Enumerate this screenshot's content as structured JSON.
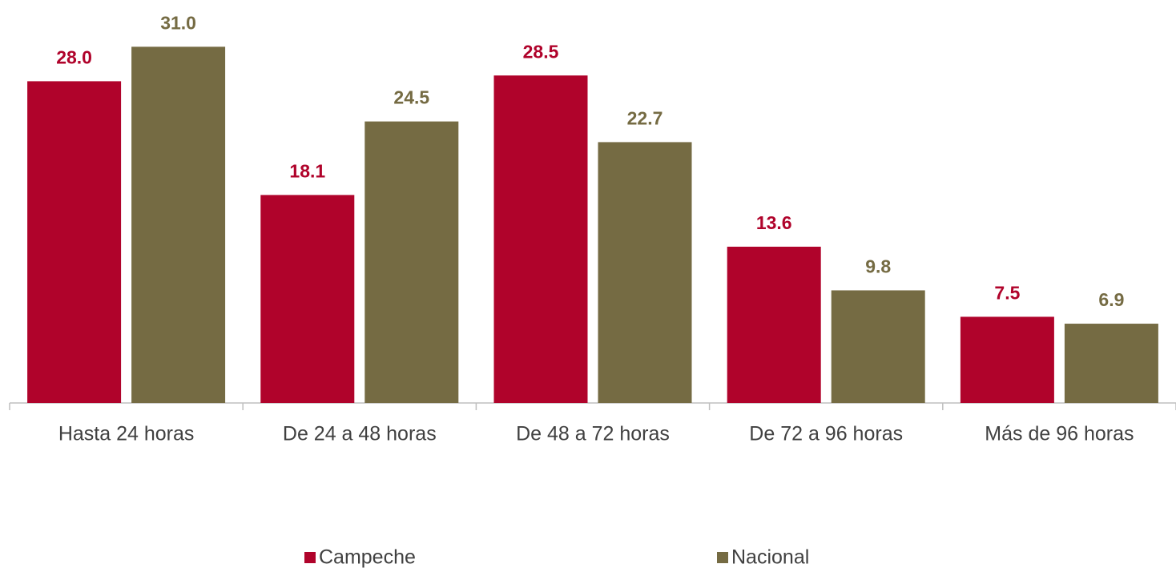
{
  "chart_data": {
    "type": "bar",
    "categories": [
      "Hasta 24 horas",
      "De 24 a 48 horas",
      "De 48 a 72 horas",
      "De 72 a 96 horas",
      "Más de 96 horas"
    ],
    "series": [
      {
        "name": "Campeche",
        "color": "#b0032b",
        "values": [
          28.0,
          18.1,
          28.5,
          13.6,
          7.5
        ],
        "value_labels": [
          "28.0",
          "18.1",
          "28.5",
          "13.6",
          "7.5"
        ]
      },
      {
        "name": "Nacional",
        "color": "#756b43",
        "values": [
          31.0,
          24.5,
          22.7,
          9.8,
          6.9
        ],
        "value_labels": [
          "31.0",
          "24.5",
          "22.7",
          "9.8",
          "6.9"
        ]
      }
    ],
    "ylim": [
      0,
      35
    ]
  }
}
